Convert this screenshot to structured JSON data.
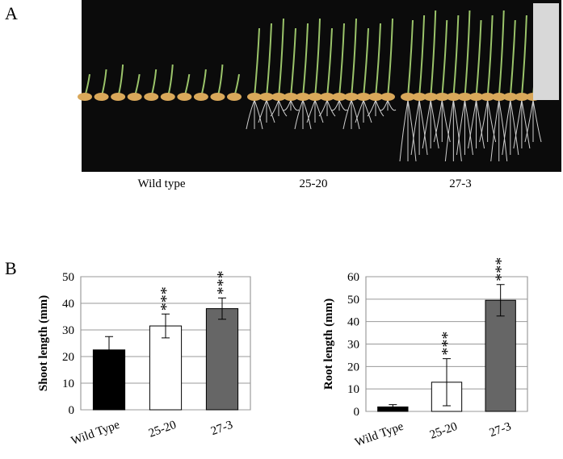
{
  "panel_a": {
    "label": "A",
    "captions": [
      "Wild type",
      "25-20",
      "27-3"
    ]
  },
  "panel_b": {
    "label": "B"
  },
  "chart_data": [
    {
      "type": "bar",
      "y_label": "Shoot length (mm)",
      "categories": [
        "Wild Type",
        "25-20",
        "27-3"
      ],
      "values": [
        22.5,
        31.5,
        38
      ],
      "errors": [
        5,
        4.5,
        4
      ],
      "colors": [
        "#000000",
        "#ffffff",
        "#666666"
      ],
      "annotations": [
        null,
        "***",
        "***"
      ],
      "ylim": [
        0,
        50
      ],
      "yticks": [
        0,
        10,
        20,
        30,
        40,
        50
      ],
      "grid": true
    },
    {
      "type": "bar",
      "y_label": "Root length (mm)",
      "categories": [
        "Wild Type",
        "25-20",
        "27-3"
      ],
      "values": [
        2,
        13,
        49.5
      ],
      "errors": [
        1,
        10.5,
        7
      ],
      "colors": [
        "#000000",
        "#ffffff",
        "#666666"
      ],
      "annotations": [
        null,
        "***",
        "***"
      ],
      "ylim": [
        0,
        60
      ],
      "yticks": [
        0,
        10,
        20,
        30,
        40,
        50,
        60
      ],
      "grid": true
    }
  ]
}
